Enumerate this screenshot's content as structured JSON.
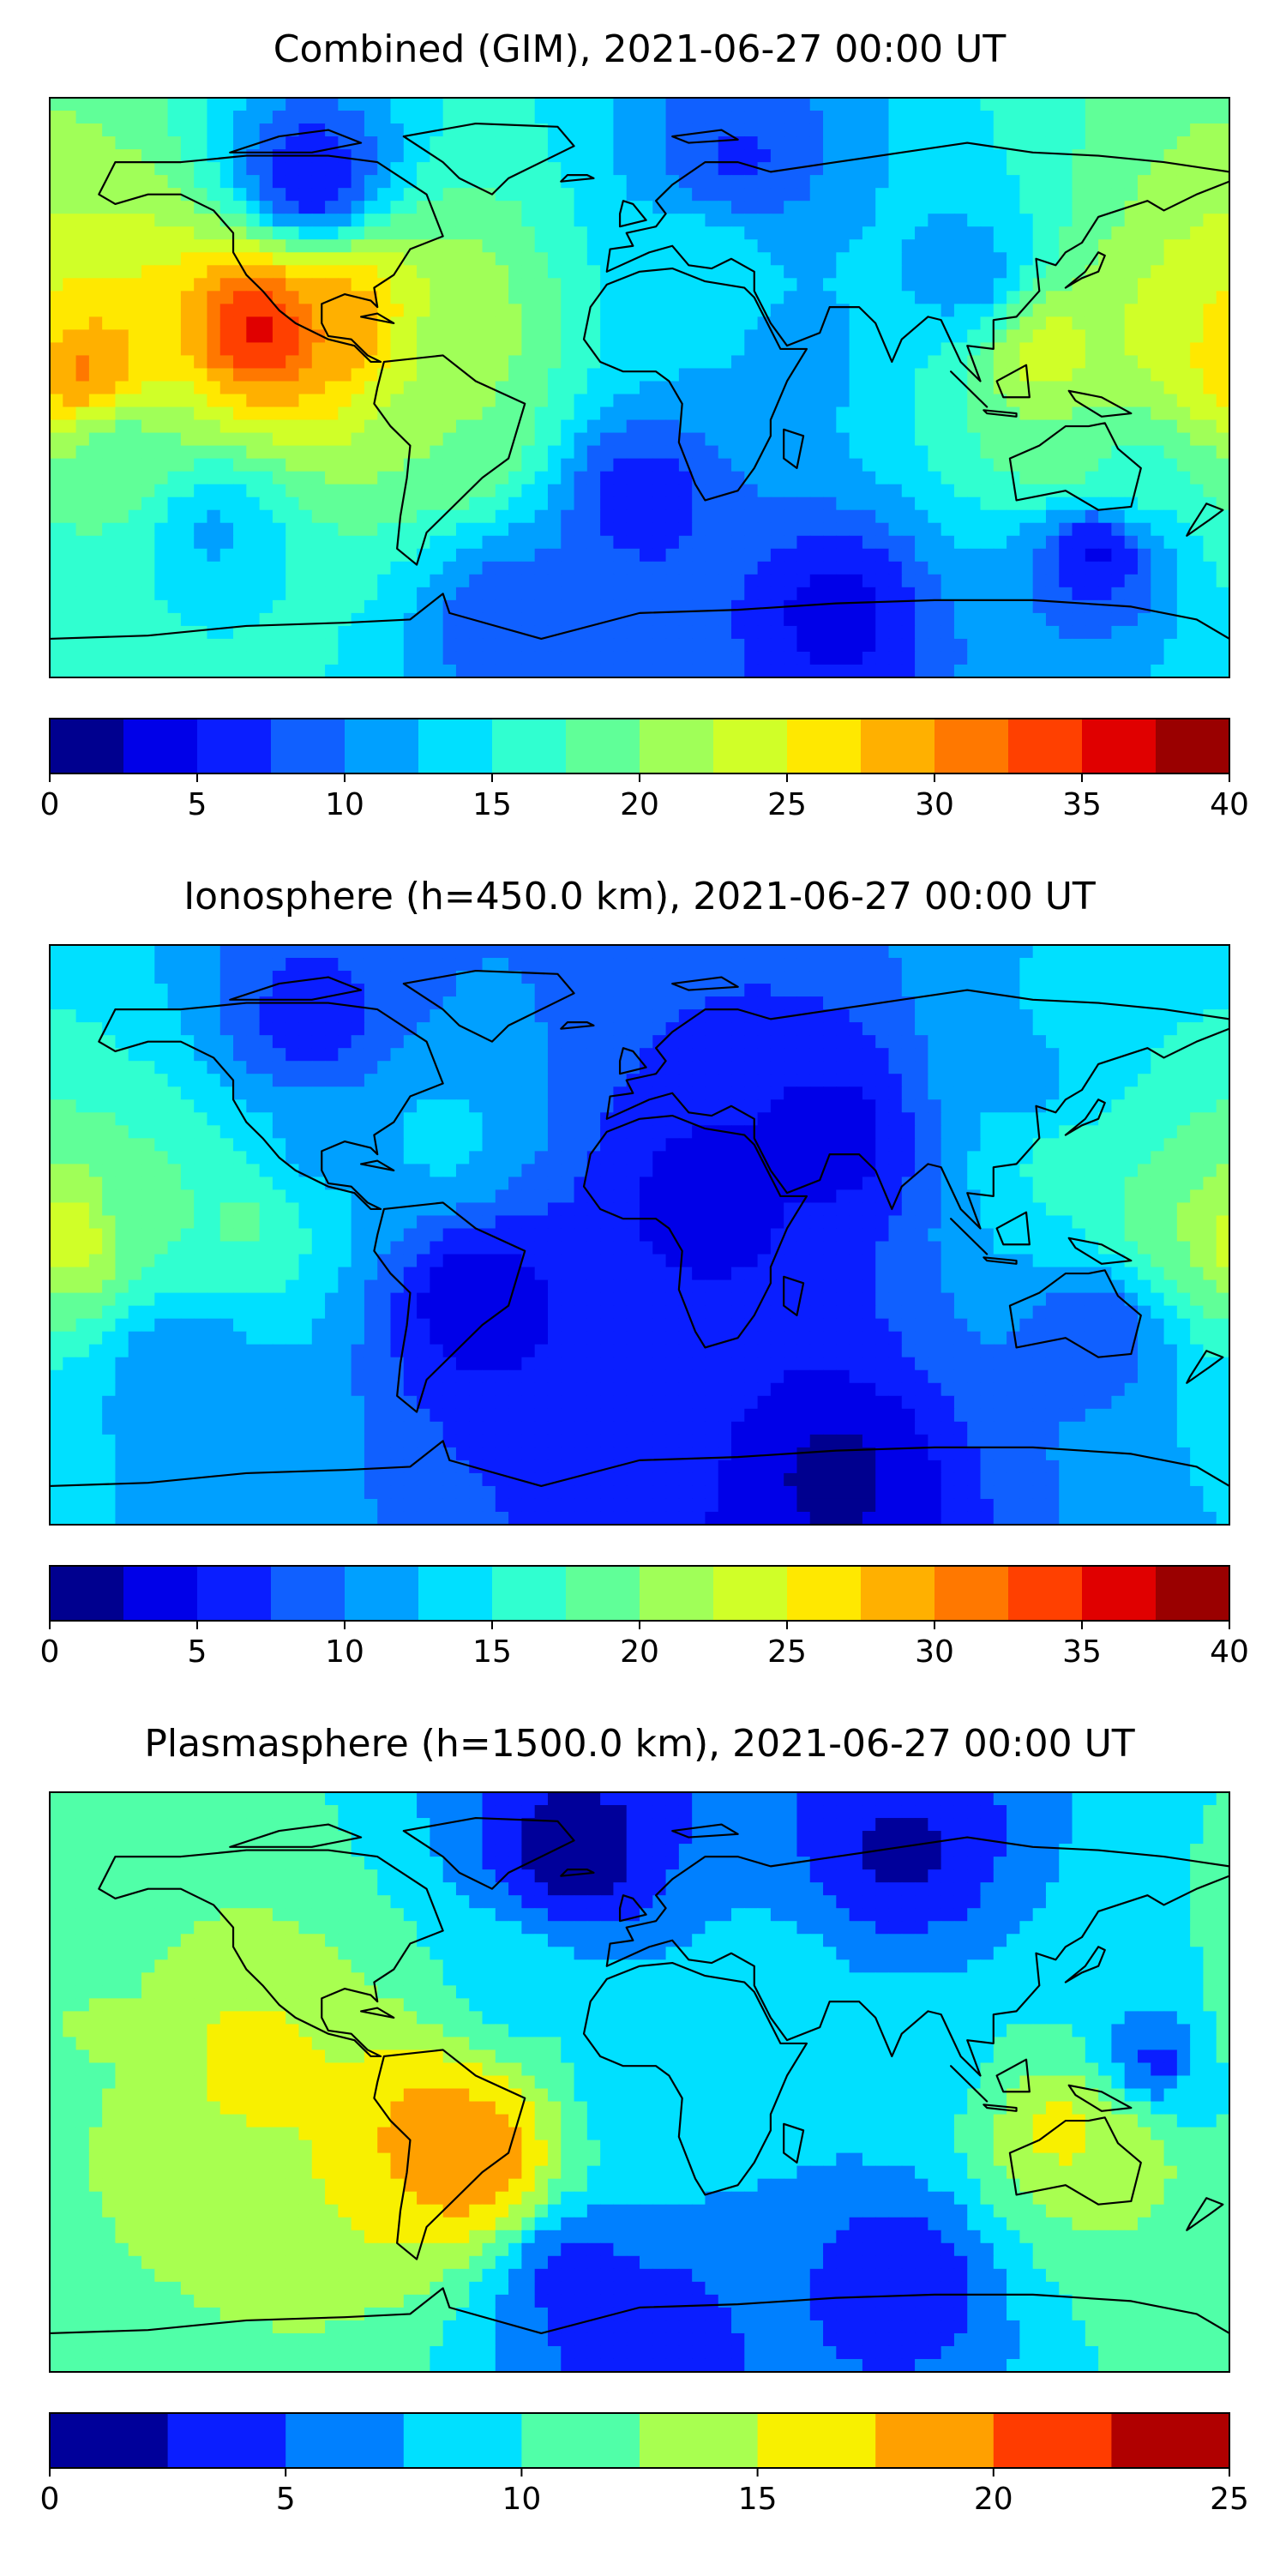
{
  "panels": [
    {
      "title": "Combined (GIM), 2021-06-27 00:00 UT",
      "colorbar": {
        "boundaries": [
          0,
          2.5,
          5,
          7.5,
          10,
          12.5,
          15,
          17.5,
          20,
          22.5,
          25,
          27.5,
          30,
          32.5,
          35,
          37.5,
          40
        ],
        "colors": [
          "#00008f",
          "#0000e8",
          "#0a1eff",
          "#1060ff",
          "#00a0ff",
          "#00e0ff",
          "#30ffd0",
          "#60ff98",
          "#a0ff58",
          "#d0ff28",
          "#ffe800",
          "#ffb000",
          "#ff7800",
          "#ff4000",
          "#e00000",
          "#9a0000"
        ],
        "tick_labels": [
          "0",
          "5",
          "10",
          "15",
          "20",
          "25",
          "30",
          "35",
          "40"
        ]
      }
    },
    {
      "title": "Ionosphere  (h=450.0 km), 2021-06-27 00:00 UT",
      "colorbar": {
        "boundaries": [
          0,
          2.5,
          5,
          7.5,
          10,
          12.5,
          15,
          17.5,
          20,
          22.5,
          25,
          27.5,
          30,
          32.5,
          35,
          37.5,
          40
        ],
        "colors": [
          "#00008f",
          "#0000e8",
          "#0a1eff",
          "#1060ff",
          "#00a0ff",
          "#00e0ff",
          "#30ffd0",
          "#60ff98",
          "#a0ff58",
          "#d0ff28",
          "#ffe800",
          "#ffb000",
          "#ff7800",
          "#ff4000",
          "#e00000",
          "#9a0000"
        ],
        "tick_labels": [
          "0",
          "5",
          "10",
          "15",
          "20",
          "25",
          "30",
          "35",
          "40"
        ]
      }
    },
    {
      "title": "Plasmasphere (h=1500.0 km), 2021-06-27 00:00 UT",
      "colorbar": {
        "boundaries": [
          0,
          2.5,
          5,
          7.5,
          10,
          12.5,
          15,
          17.5,
          20,
          22.5,
          25
        ],
        "colors": [
          "#00009a",
          "#0a1eff",
          "#0080ff",
          "#00e0ff",
          "#50ffa8",
          "#a8ff50",
          "#f8f000",
          "#ffa000",
          "#ff3c00",
          "#b00000"
        ],
        "tick_labels": [
          "0",
          "5",
          "10",
          "15",
          "20",
          "25"
        ]
      }
    }
  ],
  "chart_data": [
    {
      "type": "heatmap",
      "title": "Combined (GIM), 2021-06-27 00:00 UT",
      "xlim": [
        -180,
        180
      ],
      "ylim": [
        -90,
        90
      ],
      "value_range": [
        0,
        40
      ],
      "color_levels": [
        0,
        2.5,
        5,
        7.5,
        10,
        12.5,
        15,
        17.5,
        20,
        22.5,
        25,
        27.5,
        30,
        32.5,
        35,
        37.5,
        40
      ],
      "features": [
        {
          "lon": -115,
          "lat": 18,
          "value": 36
        },
        {
          "lon": -90,
          "lat": 20,
          "value": 30
        },
        {
          "lon": -170,
          "lat": 5,
          "value": 31
        },
        {
          "lon": -160,
          "lat": -20,
          "value": 18
        },
        {
          "lon": -60,
          "lat": 15,
          "value": 22
        },
        {
          "lon": -55,
          "lat": -15,
          "value": 20
        },
        {
          "lon": 125,
          "lat": 10,
          "value": 24
        },
        {
          "lon": 170,
          "lat": 15,
          "value": 25
        },
        {
          "lon": 130,
          "lat": -20,
          "value": 20
        },
        {
          "lon": 20,
          "lat": 40,
          "value": 14
        },
        {
          "lon": 50,
          "lat": 10,
          "value": 12
        },
        {
          "lon": 100,
          "lat": 35,
          "value": 11
        },
        {
          "lon": -100,
          "lat": 65,
          "value": 5
        },
        {
          "lon": 30,
          "lat": 70,
          "value": 7
        },
        {
          "lon": 150,
          "lat": -30,
          "value": 16
        },
        {
          "lon": 0,
          "lat": -35,
          "value": 6
        },
        {
          "lon": 140,
          "lat": -50,
          "value": 4
        },
        {
          "lon": 60,
          "lat": -70,
          "value": 4
        },
        {
          "lon": -40,
          "lat": -70,
          "value": 8
        },
        {
          "lon": -130,
          "lat": -45,
          "value": 12
        }
      ]
    },
    {
      "type": "heatmap",
      "title": "Ionosphere  (h=450.0 km), 2021-06-27 00:00 UT",
      "xlim": [
        -180,
        180
      ],
      "ylim": [
        -90,
        90
      ],
      "value_range": [
        0,
        40
      ],
      "color_levels": [
        0,
        2.5,
        5,
        7.5,
        10,
        12.5,
        15,
        17.5,
        20,
        22.5,
        25,
        27.5,
        30,
        32.5,
        35,
        37.5,
        40
      ],
      "features": [
        {
          "lon": -175,
          "lat": 0,
          "value": 25
        },
        {
          "lon": -150,
          "lat": 10,
          "value": 18
        },
        {
          "lon": -120,
          "lat": 5,
          "value": 18
        },
        {
          "lon": -100,
          "lat": 25,
          "value": 12
        },
        {
          "lon": -60,
          "lat": 30,
          "value": 13
        },
        {
          "lon": 130,
          "lat": 25,
          "value": 16
        },
        {
          "lon": 165,
          "lat": 5,
          "value": 20
        },
        {
          "lon": 120,
          "lat": 45,
          "value": 12
        },
        {
          "lon": 20,
          "lat": 10,
          "value": 4
        },
        {
          "lon": 60,
          "lat": 30,
          "value": 4
        },
        {
          "lon": -50,
          "lat": -20,
          "value": 3
        },
        {
          "lon": 0,
          "lat": -50,
          "value": 6
        },
        {
          "lon": 140,
          "lat": -30,
          "value": 8
        },
        {
          "lon": -100,
          "lat": 65,
          "value": 6
        },
        {
          "lon": 60,
          "lat": -75,
          "value": 2
        },
        {
          "lon": -140,
          "lat": -40,
          "value": 10
        }
      ]
    },
    {
      "type": "heatmap",
      "title": "Plasmasphere (h=1500.0 km), 2021-06-27 00:00 UT",
      "xlim": [
        -180,
        180
      ],
      "ylim": [
        -90,
        90
      ],
      "value_range": [
        0,
        25
      ],
      "color_levels": [
        0,
        2.5,
        5,
        7.5,
        10,
        12.5,
        15,
        17.5,
        20,
        22.5,
        25
      ],
      "features": [
        {
          "lon": -60,
          "lat": -15,
          "value": 19
        },
        {
          "lon": -50,
          "lat": -25,
          "value": 20
        },
        {
          "lon": -120,
          "lat": 5,
          "value": 16
        },
        {
          "lon": -170,
          "lat": 15,
          "value": 13
        },
        {
          "lon": -150,
          "lat": -15,
          "value": 14
        },
        {
          "lon": 130,
          "lat": -15,
          "value": 16
        },
        {
          "lon": 150,
          "lat": -20,
          "value": 14
        },
        {
          "lon": 170,
          "lat": 0,
          "value": 10
        },
        {
          "lon": 40,
          "lat": 25,
          "value": 9
        },
        {
          "lon": 80,
          "lat": 10,
          "value": 8
        },
        {
          "lon": 0,
          "lat": 0,
          "value": 8
        },
        {
          "lon": -40,
          "lat": 30,
          "value": 9
        },
        {
          "lon": -20,
          "lat": 70,
          "value": 1
        },
        {
          "lon": 80,
          "lat": 70,
          "value": 2
        },
        {
          "lon": 160,
          "lat": 5,
          "value": 3
        },
        {
          "lon": -20,
          "lat": -60,
          "value": 4
        },
        {
          "lon": 80,
          "lat": -60,
          "value": 3
        },
        {
          "lon": 0,
          "lat": -80,
          "value": 3
        }
      ]
    }
  ]
}
